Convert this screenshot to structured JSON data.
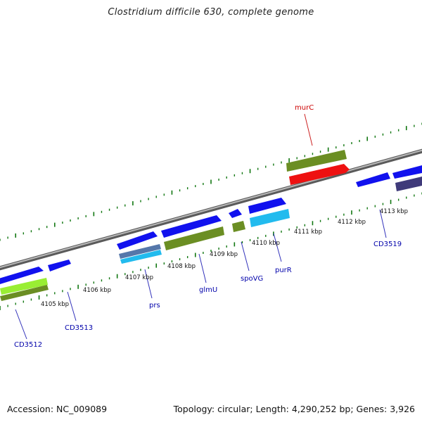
{
  "title": "Clostridium difficile 630, complete genome",
  "footer": {
    "accession": "Accession: NC_009089",
    "stats": "Topology: circular; Length: 4,290,252 bp; Genes: 3,926"
  },
  "colors": {
    "gene_blue": "#1111ee",
    "gene_olive": "#6b8e23",
    "gene_red": "#ee1111",
    "gene_cyan": "#22bbee",
    "gene_lime": "#99ee33",
    "gene_steel": "#5577aa",
    "gene_darkslate": "#3f3a7a",
    "tick_green": "#117711",
    "label_blue": "#0000aa",
    "label_red": "#cc0000",
    "backbone": "#8a8a8a"
  },
  "scale_labels": [
    "4105 kbp",
    "4106 kbp",
    "4107 kbp",
    "4108 kbp",
    "4109 kbp",
    "4110 kbp",
    "4111 kbp",
    "4112 kbp",
    "4113 kbp"
  ],
  "gene_labels": [
    {
      "name": "CD3512",
      "color": "label_blue"
    },
    {
      "name": "CD3513",
      "color": "label_blue"
    },
    {
      "name": "prs",
      "color": "label_blue"
    },
    {
      "name": "glmU",
      "color": "label_blue"
    },
    {
      "name": "spoVG",
      "color": "label_blue"
    },
    {
      "name": "purR",
      "color": "label_blue"
    },
    {
      "name": "CD3519",
      "color": "label_blue"
    },
    {
      "name": "murC",
      "color": "label_red"
    }
  ]
}
